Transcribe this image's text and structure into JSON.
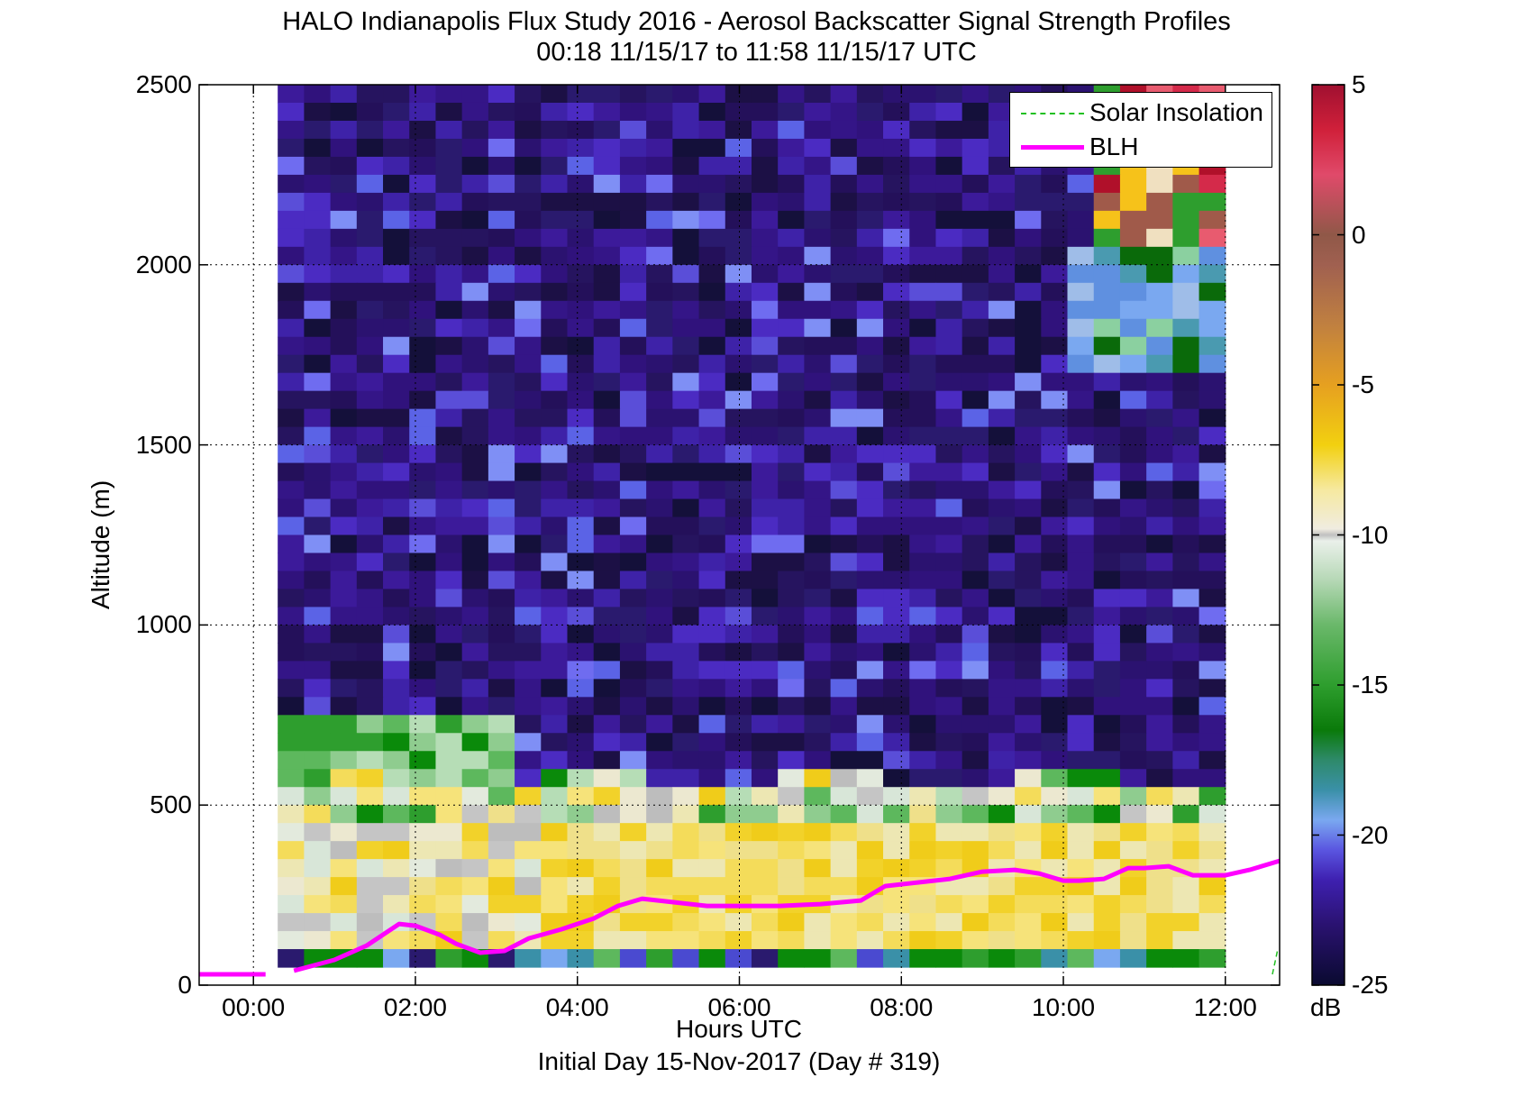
{
  "chart_data": {
    "type": "heatmap",
    "title": "HALO Indianapolis Flux Study 2016 - Aerosol Backscatter Signal Strength Profiles",
    "subtitle": "00:18 11/15/17 to 11:58 11/15/17  UTC",
    "xlabel": "Hours UTC",
    "xlabel_sub": "Initial Day 15-Nov-2017 (Day # 319)",
    "ylabel": "Altitude (m)",
    "xlim_hours": [
      -0.67,
      12.67
    ],
    "ylim": [
      0,
      2500
    ],
    "x_ticks": [
      0,
      2,
      4,
      6,
      8,
      10,
      12
    ],
    "x_tick_labels": [
      "00:00",
      "02:00",
      "04:00",
      "06:00",
      "08:00",
      "10:00",
      "12:00"
    ],
    "y_ticks": [
      0,
      500,
      1000,
      1500,
      2000,
      2500
    ],
    "y_tick_labels": [
      "0",
      "500",
      "1000",
      "1500",
      "2000",
      "2500"
    ],
    "grid": true,
    "colorbar": {
      "label": "dB",
      "range": [
        -25,
        5
      ],
      "ticks": [
        5,
        0,
        -5,
        -10,
        -15,
        -20,
        -25
      ],
      "tick_labels": [
        "5",
        "0",
        "-5",
        "-10",
        "-15",
        "-20",
        "-25"
      ]
    },
    "heatmap_extent": {
      "hours": [
        0.3,
        12.0
      ],
      "altitude": [
        50,
        2500
      ]
    },
    "legend": {
      "placement": "top-right",
      "entries": [
        {
          "name": "Solar Insolation",
          "color": "#22c022",
          "style": "dashed"
        },
        {
          "name": "BLH",
          "color": "#ff00ff",
          "style": "solid"
        }
      ]
    },
    "series": [
      {
        "name": "BLH",
        "color": "#ff00ff",
        "segments": [
          {
            "x": [
              -0.67,
              0.15
            ],
            "y": [
              30,
              30
            ]
          },
          {
            "x": [
              0.5,
              1.0,
              1.4,
              1.8,
              2.0,
              2.3,
              2.5,
              2.8,
              3.1,
              3.4,
              3.8,
              4.2,
              4.5,
              4.8,
              5.2,
              5.6,
              6.0,
              6.5,
              7.0,
              7.5,
              7.8,
              8.2,
              8.6,
              9.0,
              9.4,
              9.7,
              10.0,
              10.2,
              10.5,
              10.8,
              11.0,
              11.3,
              11.6,
              12.0,
              12.3,
              12.67
            ],
            "y": [
              40,
              70,
              110,
              170,
              165,
              140,
              115,
              90,
              95,
              130,
              155,
              185,
              220,
              240,
              230,
              220,
              220,
              220,
              225,
              235,
              275,
              285,
              295,
              315,
              320,
              310,
              290,
              290,
              295,
              325,
              325,
              330,
              305,
              305,
              320,
              345
            ]
          }
        ]
      }
    ]
  }
}
